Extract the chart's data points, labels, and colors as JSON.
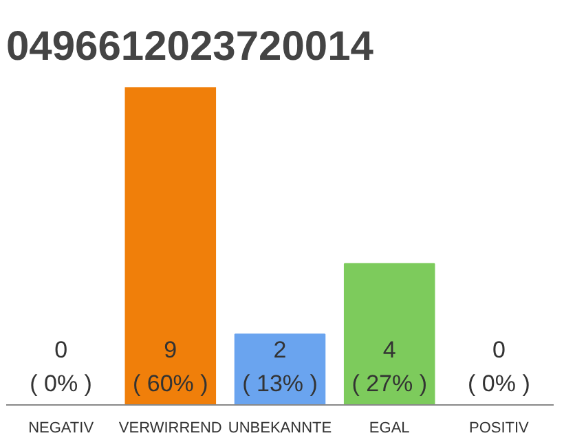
{
  "chart_data": {
    "type": "bar",
    "title": "0496612023720014",
    "categories": [
      "NEGATIV",
      "VERWIRREND",
      "UNBEKANNTE",
      "EGAL",
      "POSITIV"
    ],
    "values": [
      0,
      9,
      2,
      4,
      0
    ],
    "colors": [
      "#808080",
      "#f07f0a",
      "#6aa4ef",
      "#7dcb5c",
      "#808080"
    ],
    "value_labels": [
      "0\n( 0% )",
      "9\n( 60% )",
      "2\n( 13% )",
      "4\n( 27% )",
      "0\n( 0% )"
    ],
    "ylim": [
      0,
      9
    ],
    "tick_labels": "x",
    "grid": false
  }
}
